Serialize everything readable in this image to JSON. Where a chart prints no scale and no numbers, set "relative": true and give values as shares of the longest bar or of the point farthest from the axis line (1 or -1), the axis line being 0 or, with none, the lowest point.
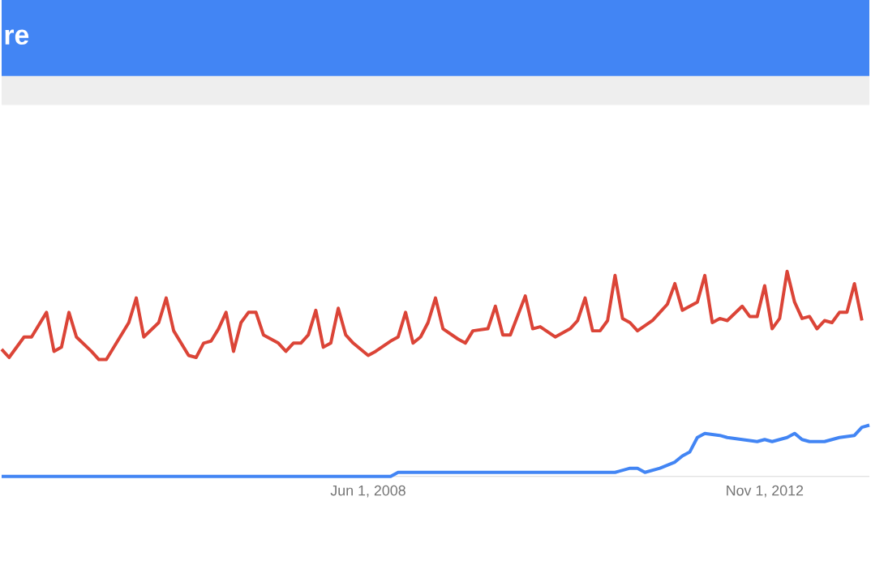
{
  "chart_data": {
    "type": "line",
    "title": "re",
    "relative": true,
    "legend": false,
    "grid": false,
    "marker": "none",
    "line_style": "solid",
    "xlim": [
      "2004-05",
      "2014-01"
    ],
    "xticks": [
      {
        "value": "2008-06-01",
        "label": "Jun 1, 2008"
      },
      {
        "value": "2012-11-01",
        "label": "Nov 1, 2012"
      }
    ],
    "series": [
      {
        "color": "#db4437",
        "x": [
          "2004-05",
          "2004-06",
          "2004-08",
          "2004-09",
          "2004-11",
          "2004-12",
          "2005-01",
          "2005-02",
          "2005-03",
          "2005-05",
          "2005-06",
          "2005-07",
          "2005-10",
          "2005-11",
          "2005-12",
          "2006-02",
          "2006-03",
          "2006-04",
          "2006-06",
          "2006-07",
          "2006-08",
          "2006-09",
          "2006-10",
          "2006-11",
          "2006-12",
          "2007-01",
          "2007-02",
          "2007-03",
          "2007-04",
          "2007-06",
          "2007-07",
          "2007-08",
          "2007-09",
          "2007-10",
          "2007-11",
          "2007-12",
          "2008-01",
          "2008-02",
          "2008-03",
          "2008-04",
          "2008-06",
          "2008-07",
          "2008-09",
          "2008-10",
          "2008-11",
          "2008-12",
          "2009-01",
          "2009-02",
          "2009-03",
          "2009-04",
          "2009-06",
          "2009-07",
          "2009-08",
          "2009-10",
          "2009-11",
          "2009-12",
          "2010-01",
          "2010-03",
          "2010-04",
          "2010-05",
          "2010-07",
          "2010-09",
          "2010-10",
          "2010-11",
          "2010-12",
          "2011-01",
          "2011-02",
          "2011-03",
          "2011-04",
          "2011-05",
          "2011-06",
          "2011-08",
          "2011-09",
          "2011-10",
          "2011-11",
          "2011-12",
          "2012-01",
          "2012-02",
          "2012-03",
          "2012-04",
          "2012-05",
          "2012-06",
          "2012-08",
          "2012-09",
          "2012-10",
          "2012-11",
          "2012-12",
          "2013-01",
          "2013-02",
          "2013-03",
          "2013-04",
          "2013-05",
          "2013-06",
          "2013-07",
          "2013-08",
          "2013-09",
          "2013-10",
          "2013-11",
          "2013-12"
        ],
        "values": [
          0.62,
          0.58,
          0.68,
          0.68,
          0.8,
          0.61,
          0.63,
          0.8,
          0.68,
          0.61,
          0.57,
          0.57,
          0.75,
          0.87,
          0.68,
          0.75,
          0.87,
          0.71,
          0.59,
          0.58,
          0.65,
          0.66,
          0.72,
          0.8,
          0.61,
          0.75,
          0.8,
          0.8,
          0.69,
          0.65,
          0.61,
          0.65,
          0.65,
          0.69,
          0.81,
          0.63,
          0.65,
          0.82,
          0.69,
          0.65,
          0.59,
          0.61,
          0.66,
          0.68,
          0.8,
          0.65,
          0.68,
          0.75,
          0.87,
          0.72,
          0.67,
          0.65,
          0.71,
          0.72,
          0.83,
          0.69,
          0.69,
          0.88,
          0.72,
          0.73,
          0.68,
          0.72,
          0.76,
          0.87,
          0.71,
          0.71,
          0.76,
          0.98,
          0.77,
          0.75,
          0.71,
          0.76,
          0.8,
          0.84,
          0.94,
          0.81,
          0.83,
          0.85,
          0.98,
          0.75,
          0.77,
          0.76,
          0.83,
          0.78,
          0.78,
          0.93,
          0.72,
          0.77,
          1,
          0.85,
          0.77,
          0.78,
          0.72,
          0.76,
          0.75,
          0.8,
          0.8,
          0.94,
          0.76
        ]
      },
      {
        "color": "#4285f4",
        "x": [
          "2004-05",
          "2008-09",
          "2008-10",
          "2011-02",
          "2011-03",
          "2011-05",
          "2011-06",
          "2011-07",
          "2011-09",
          "2011-11",
          "2011-12",
          "2012-01",
          "2012-02",
          "2012-03",
          "2012-05",
          "2012-06",
          "2012-08",
          "2012-10",
          "2012-11",
          "2012-12",
          "2013-02",
          "2013-03",
          "2013-04",
          "2013-05",
          "2013-07",
          "2013-09",
          "2013-11",
          "2013-12",
          "2014-01"
        ],
        "values": [
          0,
          0,
          0.02,
          0.02,
          0.02,
          0.04,
          0.04,
          0.02,
          0.04,
          0.07,
          0.1,
          0.12,
          0.19,
          0.21,
          0.2,
          0.19,
          0.18,
          0.17,
          0.18,
          0.17,
          0.19,
          0.21,
          0.18,
          0.17,
          0.17,
          0.19,
          0.2,
          0.24,
          0.25
        ]
      }
    ]
  }
}
